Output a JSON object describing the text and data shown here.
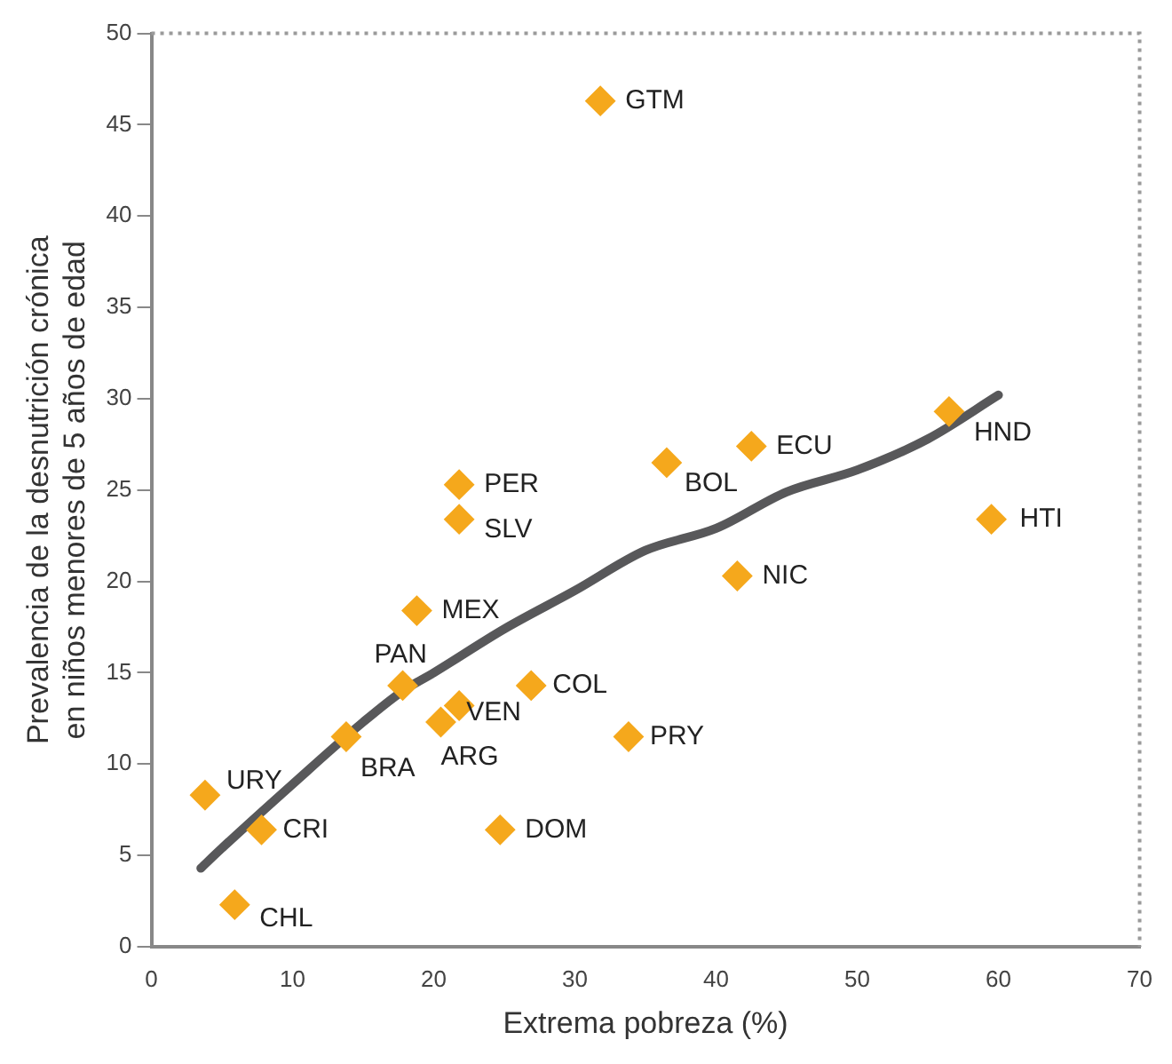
{
  "chart_data": {
    "type": "scatter",
    "xlabel": "Extrema pobreza (%)",
    "ylabel": "Prevalencia de la desnutrición crónica\nen niños menores de 5 años de edad",
    "xlim": [
      0,
      70
    ],
    "ylim": [
      0,
      50
    ],
    "xticks": [
      0,
      10,
      20,
      30,
      40,
      50,
      60,
      70
    ],
    "yticks": [
      0,
      5,
      10,
      15,
      20,
      25,
      30,
      35,
      40,
      45,
      50
    ],
    "grid": false,
    "legend": false,
    "marker": "diamond",
    "series": [
      {
        "color": "#f5a81c",
        "x": [
          31.8,
          56.5,
          59.5,
          42.5,
          36.5,
          41.5,
          21.8,
          21.8,
          18.8,
          17.8,
          26.9,
          21.8,
          20.5,
          13.8,
          33.8,
          3.8,
          7.8,
          24.7,
          5.9
        ],
        "values": [
          46.3,
          29.3,
          23.4,
          27.4,
          26.5,
          20.3,
          25.3,
          23.4,
          18.4,
          14.3,
          14.3,
          13.2,
          12.3,
          11.5,
          11.5,
          8.3,
          6.4,
          6.4,
          2.3
        ]
      },
      {
        "type": "line",
        "color": "#58585a",
        "line_style": "solid",
        "marker": "none",
        "x": [
          3.5,
          5,
          10,
          15,
          17.8,
          20,
          25,
          30,
          35,
          40,
          45,
          50,
          55,
          60
        ],
        "values": [
          4.3,
          5.4,
          8.9,
          12.3,
          14,
          15,
          17.4,
          19.5,
          21.7,
          22.9,
          24.9,
          26.1,
          27.8,
          30.2
        ]
      }
    ],
    "annotations": [
      {
        "text": "GTM",
        "x": 31.8,
        "y": 46.3
      },
      {
        "text": "HND",
        "x": 56.5,
        "y": 29.3
      },
      {
        "text": "HTI",
        "x": 59.5,
        "y": 23.4
      },
      {
        "text": "ECU",
        "x": 42.5,
        "y": 27.4
      },
      {
        "text": "BOL",
        "x": 36.5,
        "y": 26.5
      },
      {
        "text": "NIC",
        "x": 41.5,
        "y": 20.3
      },
      {
        "text": "PER",
        "x": 21.8,
        "y": 25.3
      },
      {
        "text": "SLV",
        "x": 21.8,
        "y": 23.4
      },
      {
        "text": "MEX",
        "x": 18.8,
        "y": 18.4
      },
      {
        "text": "PAN",
        "x": 17.8,
        "y": 14.3
      },
      {
        "text": "COL",
        "x": 26.9,
        "y": 14.3
      },
      {
        "text": "VEN",
        "x": 21.8,
        "y": 13.2
      },
      {
        "text": "ARG",
        "x": 20.5,
        "y": 12.3
      },
      {
        "text": "BRA",
        "x": 13.8,
        "y": 11.5
      },
      {
        "text": "PRY",
        "x": 33.8,
        "y": 11.5
      },
      {
        "text": "URY",
        "x": 3.8,
        "y": 8.3
      },
      {
        "text": "CRI",
        "x": 7.8,
        "y": 6.4
      },
      {
        "text": "DOM",
        "x": 24.7,
        "y": 6.4
      },
      {
        "text": "CHL",
        "x": 5.9,
        "y": 2.3
      }
    ]
  }
}
